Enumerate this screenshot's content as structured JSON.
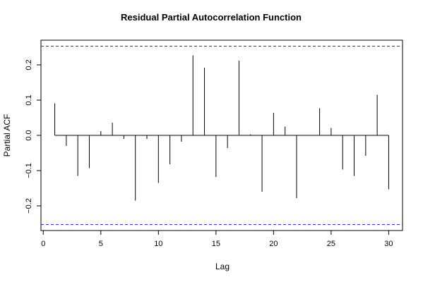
{
  "chart_data": {
    "type": "bar",
    "title": "Residual Partial Autocorrelation Function",
    "xlabel": "Lag",
    "ylabel": "Partial ACF",
    "xlim": [
      -0.2,
      31.2
    ],
    "ylim": [
      -0.27,
      0.27
    ],
    "x_ticks": [
      0,
      5,
      10,
      15,
      20,
      25,
      30
    ],
    "y_ticks": [
      -0.2,
      -0.1,
      0.0,
      0.1,
      0.2
    ],
    "y_tick_labels": [
      "−0.2",
      "−0.1",
      "0.0",
      "0.1",
      "0.2"
    ],
    "confidence_bounds": [
      0.253,
      -0.253
    ],
    "bound_color": "#3333cc",
    "line_color": "#000000",
    "grid": false,
    "legend": "none",
    "lags": [
      1,
      2,
      3,
      4,
      5,
      6,
      7,
      8,
      9,
      10,
      11,
      12,
      13,
      14,
      15,
      16,
      17,
      18,
      19,
      20,
      21,
      22,
      23,
      24,
      25,
      26,
      27,
      28,
      29,
      30
    ],
    "values": [
      0.091,
      -0.03,
      -0.115,
      -0.093,
      0.012,
      0.036,
      -0.01,
      -0.185,
      -0.01,
      -0.135,
      -0.082,
      -0.018,
      0.227,
      0.192,
      -0.118,
      -0.036,
      0.212,
      0.003,
      -0.16,
      0.064,
      0.025,
      -0.178,
      0.001,
      0.077,
      0.021,
      -0.097,
      -0.115,
      -0.058,
      0.115,
      -0.153
    ]
  }
}
